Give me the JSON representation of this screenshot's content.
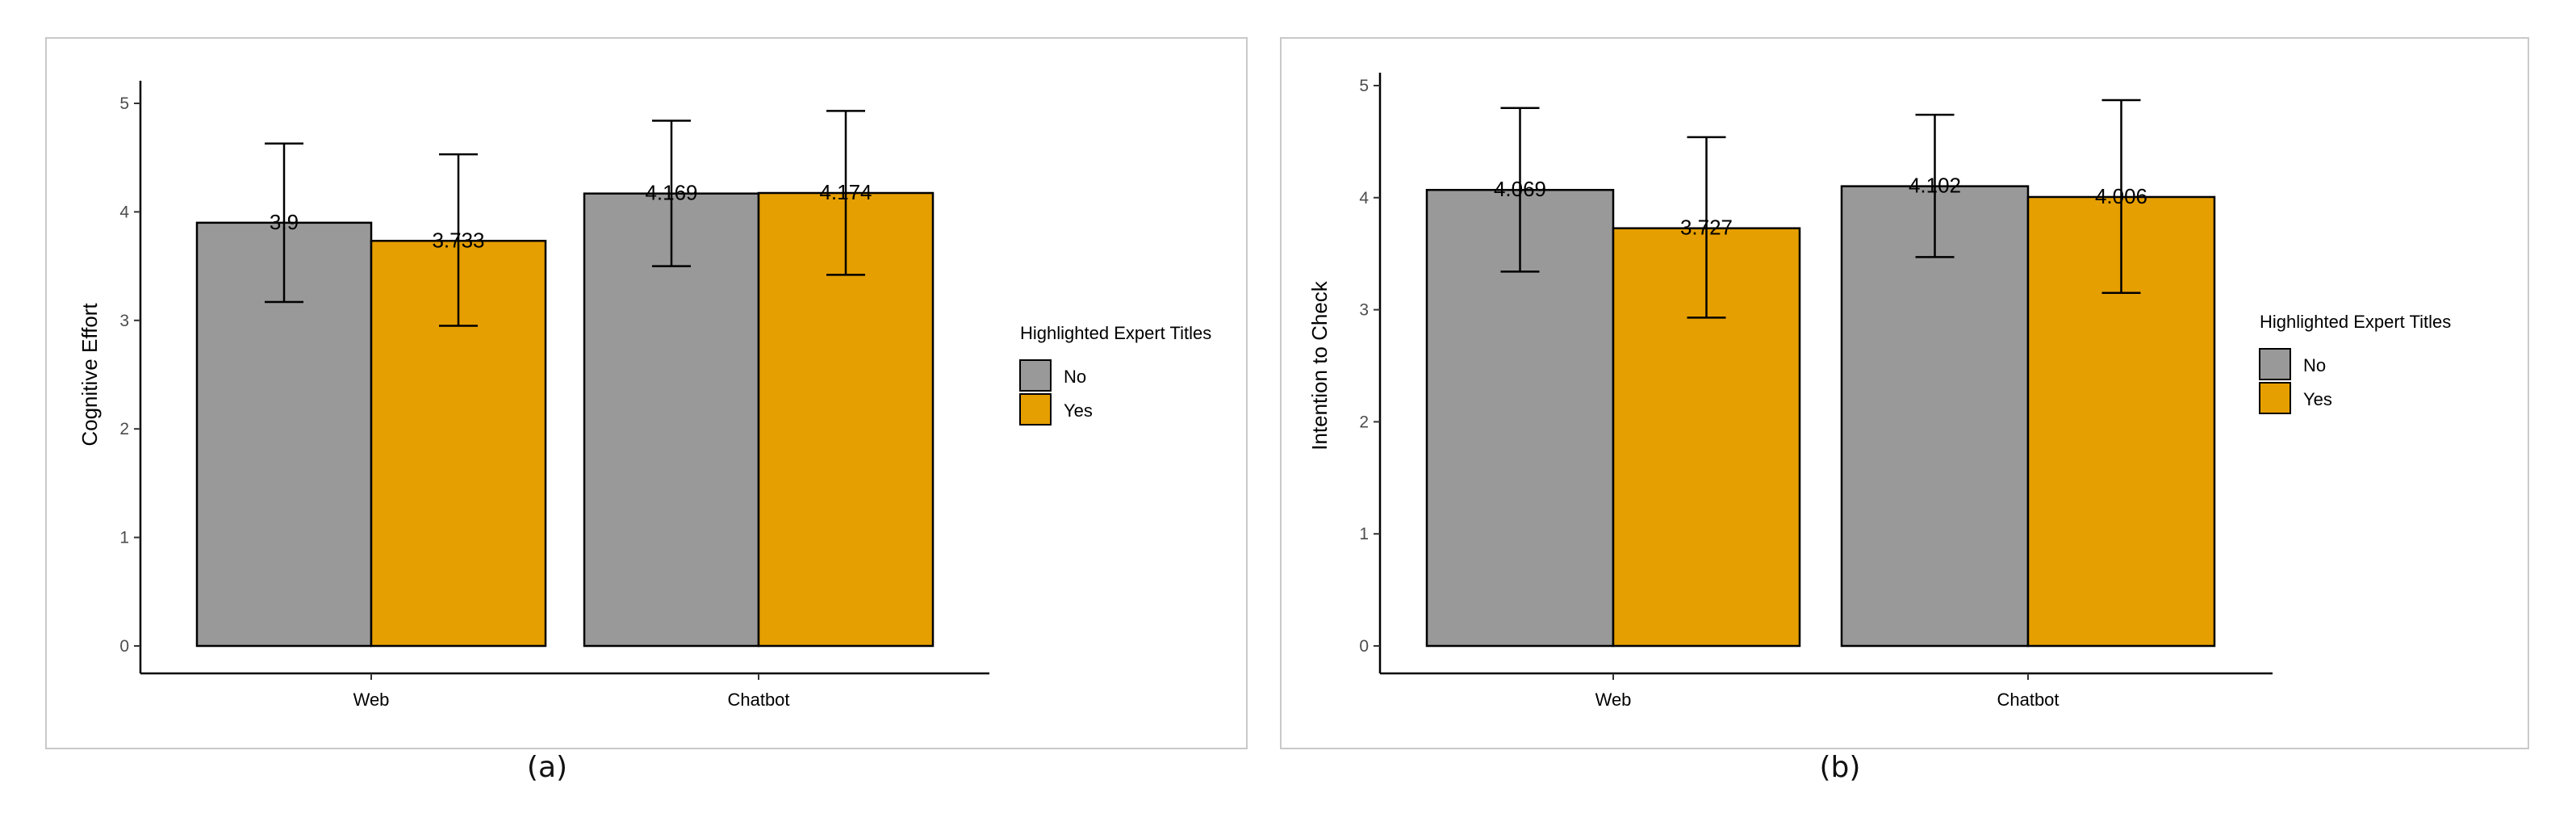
{
  "panels": [
    {
      "caption": "(a)",
      "chart_data": {
        "type": "bar",
        "categories": [
          "Web",
          "Chatbot"
        ],
        "ylabel": "Cognitive Effort",
        "xlabel": "",
        "ylim": [
          0,
          5
        ],
        "yticks": [
          0,
          1,
          2,
          3,
          4,
          5
        ],
        "legend_title": "Highlighted Expert Titles",
        "legend_position": "right",
        "grid": false,
        "series": [
          {
            "name": "No",
            "color": "#999999",
            "values": [
              3.9,
              4.169
            ],
            "labels": [
              "3.9",
              "4.169"
            ],
            "err_low": [
              3.17,
              3.5
            ],
            "err_high": [
              4.63,
              4.84
            ]
          },
          {
            "name": "Yes",
            "color": "#E69F00",
            "values": [
              3.733,
              4.174
            ],
            "labels": [
              "3.733",
              "4.174"
            ],
            "err_low": [
              2.95,
              3.42
            ],
            "err_high": [
              4.53,
              4.93
            ]
          }
        ]
      }
    },
    {
      "caption": "(b)",
      "chart_data": {
        "type": "bar",
        "categories": [
          "Web",
          "Chatbot"
        ],
        "ylabel": "Intention to Check",
        "xlabel": "",
        "ylim": [
          0,
          5
        ],
        "yticks": [
          0,
          1,
          2,
          3,
          4,
          5
        ],
        "legend_title": "Highlighted Expert Titles",
        "legend_position": "right",
        "grid": false,
        "series": [
          {
            "name": "No",
            "color": "#999999",
            "values": [
              4.069,
              4.102
            ],
            "labels": [
              "4.069",
              "4.102"
            ],
            "err_low": [
              3.34,
              3.47
            ],
            "err_high": [
              4.8,
              4.74
            ]
          },
          {
            "name": "Yes",
            "color": "#E69F00",
            "values": [
              3.727,
              4.006
            ],
            "labels": [
              "3.727",
              "4.006"
            ],
            "err_low": [
              2.93,
              3.15
            ],
            "err_high": [
              4.54,
              4.87
            ]
          }
        ]
      }
    }
  ]
}
